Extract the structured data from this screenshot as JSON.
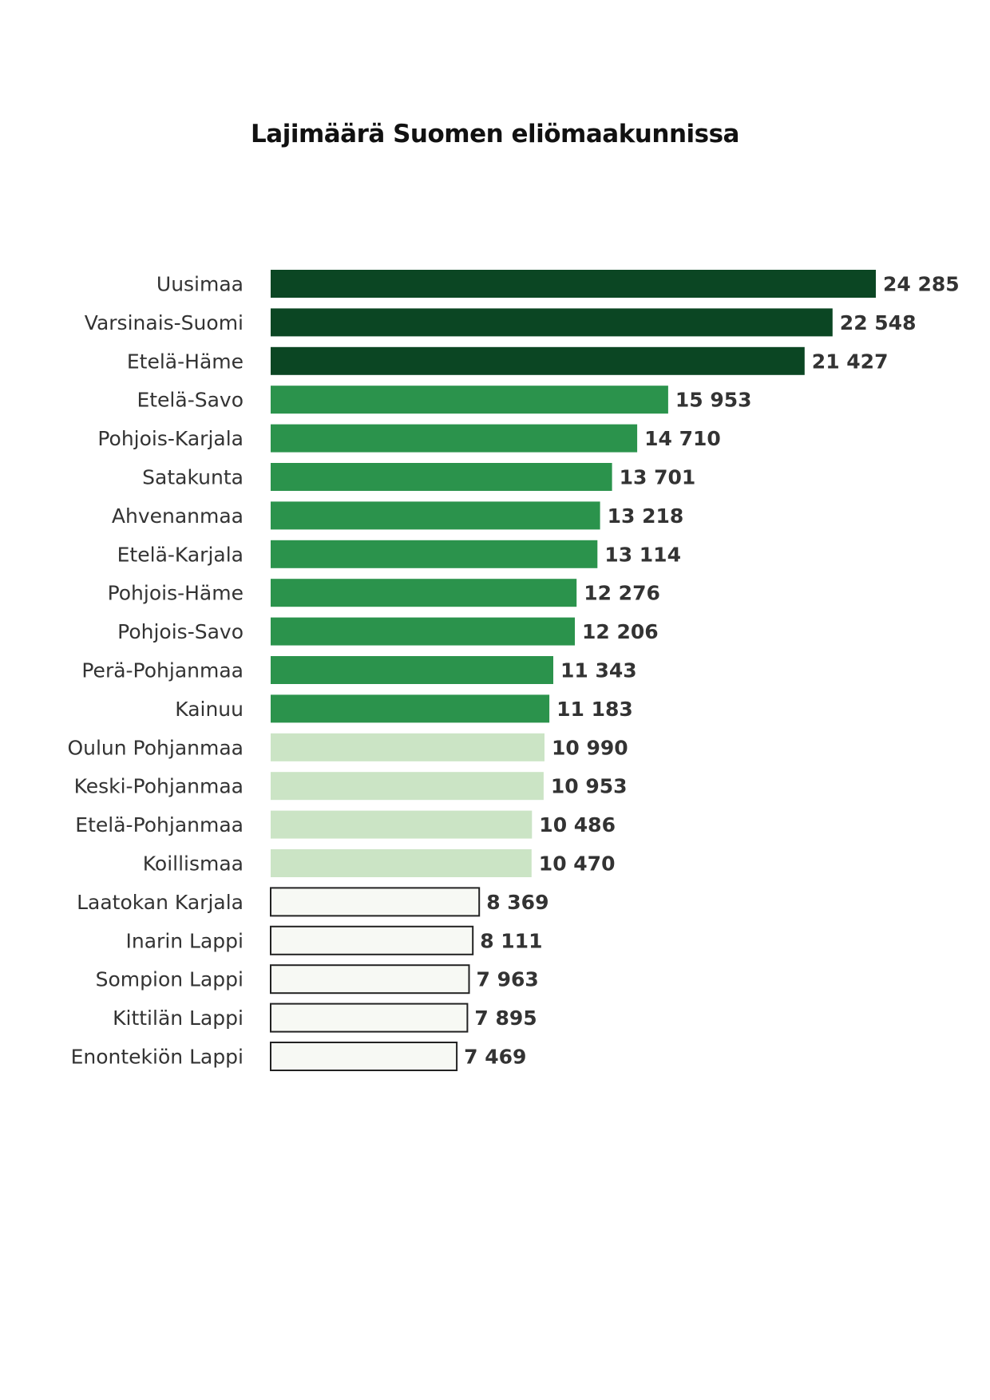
{
  "chart_data": {
    "type": "bar",
    "orientation": "horizontal",
    "title": "Lajimäärä Suomen eliömaakunnissa",
    "xlabel": "",
    "ylabel": "",
    "xlim": [
      0,
      24285
    ],
    "grid": false,
    "legend": "none",
    "categories": [
      "Uusimaa",
      "Varsinais-Suomi",
      "Etelä-Häme",
      "Etelä-Savo",
      "Pohjois-Karjala",
      "Satakunta",
      "Ahvenanmaa",
      "Etelä-Karjala",
      "Pohjois-Häme",
      "Pohjois-Savo",
      "Perä-Pohjanmaa",
      "Kainuu",
      "Oulun Pohjanmaa",
      "Keski-Pohjanmaa",
      "Etelä-Pohjanmaa",
      "Koillismaa",
      "Laatokan Karjala",
      "Inarin Lappi",
      "Sompion Lappi",
      "Kittilän Lappi",
      "Enontekiön Lappi"
    ],
    "values": [
      24285,
      22548,
      21427,
      15953,
      14710,
      13701,
      13218,
      13114,
      12276,
      12206,
      11343,
      11183,
      10990,
      10953,
      10486,
      10470,
      8369,
      8111,
      7963,
      7895,
      7469
    ],
    "value_labels": [
      "24 285",
      "22 548",
      "21 427",
      "15 953",
      "14 710",
      "13 701",
      "13 218",
      "13 114",
      "12 276",
      "12 206",
      "11 343",
      "11 183",
      "10 990",
      "10 953",
      "10 486",
      "10 470",
      "8 369",
      "8 111",
      "7 963",
      "7 895",
      "7 469"
    ],
    "colors": {
      "dark": "#0b4623",
      "medium": "#2b934c",
      "light": "#cbe4c5",
      "lightest": "#f7f9f4",
      "outline": "#222222",
      "text": "#333333"
    },
    "bar_color_classes": [
      "dark",
      "dark",
      "dark",
      "medium",
      "medium",
      "medium",
      "medium",
      "medium",
      "medium",
      "medium",
      "medium",
      "medium",
      "light",
      "light",
      "light",
      "light",
      "lightest",
      "lightest",
      "lightest",
      "lightest",
      "lightest"
    ]
  }
}
